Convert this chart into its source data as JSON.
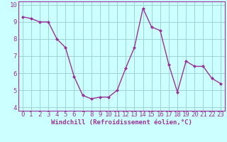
{
  "x": [
    0,
    1,
    2,
    3,
    4,
    5,
    6,
    7,
    8,
    9,
    10,
    11,
    12,
    13,
    14,
    15,
    16,
    17,
    18,
    19,
    20,
    21,
    22,
    23
  ],
  "y": [
    9.3,
    9.2,
    9.0,
    9.0,
    8.0,
    7.5,
    5.8,
    4.7,
    4.5,
    4.6,
    4.6,
    5.0,
    6.3,
    7.5,
    9.8,
    8.7,
    8.5,
    6.5,
    4.9,
    6.7,
    6.4,
    6.4,
    5.7,
    5.4
  ],
  "line_color": "#993399",
  "marker": "D",
  "marker_size": 2,
  "bg_color": "#ccffff",
  "grid_color": "#99cccc",
  "xlabel": "Windchill (Refroidissement éolien,°C)",
  "ylabel": "",
  "title": "",
  "xlim": [
    -0.5,
    23.5
  ],
  "ylim": [
    3.8,
    10.2
  ],
  "yticks": [
    4,
    5,
    6,
    7,
    8,
    9,
    10
  ],
  "xticks": [
    0,
    1,
    2,
    3,
    4,
    5,
    6,
    7,
    8,
    9,
    10,
    11,
    12,
    13,
    14,
    15,
    16,
    17,
    18,
    19,
    20,
    21,
    22,
    23
  ],
  "xlabel_fontsize": 6.5,
  "tick_fontsize": 6.5,
  "line_width": 1.0
}
